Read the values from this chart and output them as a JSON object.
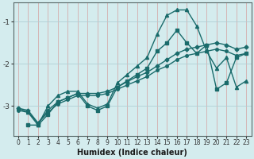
{
  "xlabel": "Humidex (Indice chaleur)",
  "bg_color": "#d4ecee",
  "grid_h_color": "#b0cfd4",
  "grid_v_color": "#d4a0a0",
  "line_color": "#1a6b6b",
  "xlim": [
    -0.5,
    23.5
  ],
  "ylim": [
    -3.7,
    -0.55
  ],
  "yticks": [
    -3,
    -2,
    -1
  ],
  "xticks": [
    0,
    1,
    2,
    3,
    4,
    5,
    6,
    7,
    8,
    9,
    10,
    11,
    12,
    13,
    14,
    15,
    16,
    17,
    18,
    19,
    20,
    21,
    22,
    23
  ],
  "series": [
    {
      "x": [
        0,
        1,
        2,
        3,
        4,
        5,
        6,
        7,
        8,
        9,
        10,
        11,
        12,
        13,
        14,
        15,
        16,
        17,
        18,
        19,
        20,
        21,
        22,
        23
      ],
      "y": [
        -3.05,
        -3.15,
        -3.45,
        -3.0,
        -2.75,
        -2.65,
        -2.65,
        -2.95,
        -3.05,
        -2.95,
        -2.45,
        -2.25,
        -2.05,
        -1.85,
        -1.3,
        -0.85,
        -0.72,
        -0.72,
        -1.1,
        -1.7,
        -2.1,
        -1.85,
        -2.55,
        -2.4
      ],
      "marker": "^",
      "ms": 3.0,
      "lw": 1.0
    },
    {
      "x": [
        0,
        1,
        2,
        3,
        4,
        5,
        6,
        7,
        8,
        9,
        10,
        11,
        12,
        13,
        14,
        15,
        16,
        17,
        18,
        19,
        20,
        21,
        22,
        23
      ],
      "y": [
        -3.1,
        -3.15,
        -3.4,
        -3.15,
        -2.95,
        -2.85,
        -2.75,
        -2.75,
        -2.75,
        -2.7,
        -2.6,
        -2.5,
        -2.4,
        -2.3,
        -2.15,
        -2.05,
        -1.9,
        -1.8,
        -1.75,
        -1.7,
        -1.65,
        -1.7,
        -1.8,
        -1.75
      ],
      "marker": "o",
      "ms": 2.5,
      "lw": 1.0
    },
    {
      "x": [
        0,
        1,
        2,
        3,
        4,
        5,
        6,
        7,
        8,
        9,
        10,
        11,
        12,
        13,
        14,
        15,
        16,
        17,
        18,
        19,
        20,
        21,
        22,
        23
      ],
      "y": [
        -3.05,
        -3.1,
        -3.4,
        -3.1,
        -2.9,
        -2.8,
        -2.7,
        -2.7,
        -2.7,
        -2.65,
        -2.55,
        -2.42,
        -2.3,
        -2.2,
        -2.05,
        -1.9,
        -1.75,
        -1.65,
        -1.6,
        -1.55,
        -1.5,
        -1.55,
        -1.65,
        -1.6
      ],
      "marker": "D",
      "ms": 2.5,
      "lw": 1.0
    },
    {
      "x": [
        1,
        2,
        3,
        4,
        5,
        6,
        7,
        8,
        9,
        10,
        11,
        12,
        13,
        14,
        15,
        16,
        17,
        18,
        19,
        20,
        21,
        22,
        23
      ],
      "y": [
        -3.45,
        -3.45,
        -3.2,
        -2.9,
        -2.8,
        -2.7,
        -3.0,
        -3.1,
        -3.0,
        -2.55,
        -2.4,
        -2.25,
        -2.1,
        -1.7,
        -1.5,
        -1.2,
        -1.5,
        -1.75,
        -1.55,
        -2.6,
        -2.45,
        -1.85,
        -1.75
      ],
      "marker": "s",
      "ms": 2.5,
      "lw": 1.0
    }
  ]
}
